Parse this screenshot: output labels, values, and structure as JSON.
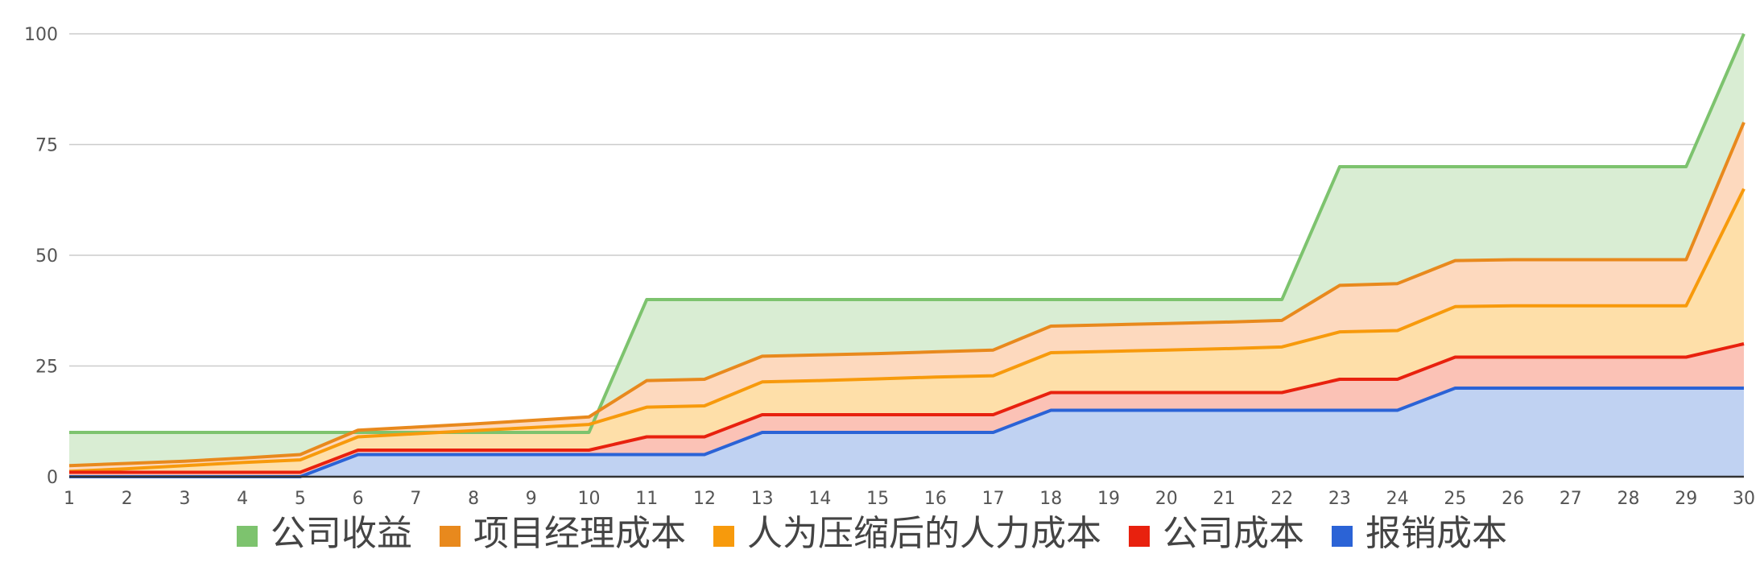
{
  "chart_data": {
    "type": "area",
    "stacked": false,
    "x": [
      1,
      2,
      3,
      4,
      5,
      6,
      7,
      8,
      9,
      10,
      11,
      12,
      13,
      14,
      15,
      16,
      17,
      18,
      19,
      20,
      21,
      22,
      23,
      24,
      25,
      26,
      27,
      28,
      29,
      30
    ],
    "ylim": [
      0,
      100
    ],
    "y_ticks": [
      0,
      25,
      50,
      75,
      100
    ],
    "grid": true,
    "legend_position": "bottom",
    "series": [
      {
        "name": "公司收益",
        "color": "#7dc36e",
        "fill": "#d9edd3",
        "values": [
          10,
          10,
          10,
          10,
          10,
          10,
          10,
          10,
          10,
          10,
          40,
          40,
          40,
          40,
          40,
          40,
          40,
          40,
          40,
          40,
          40,
          40,
          70,
          70,
          70,
          70,
          70,
          70,
          70,
          100
        ]
      },
      {
        "name": "项目经理成本",
        "color": "#e8891d",
        "fill": "#fdd9be",
        "values": [
          2.5,
          3,
          3.5,
          4.2,
          5,
          10.5,
          11.2,
          11.9,
          12.7,
          13.5,
          21.7,
          22,
          27.2,
          27.5,
          27.8,
          28.2,
          28.6,
          34,
          34.3,
          34.6,
          34.9,
          35.3,
          43.2,
          43.6,
          48.8,
          49,
          49,
          49,
          49,
          80
        ]
      },
      {
        "name": "人为压缩后的人力成本",
        "color": "#f79a0c",
        "fill": "#fedfa9",
        "values": [
          1.2,
          1.8,
          2.5,
          3.2,
          3.8,
          9,
          9.7,
          10.4,
          11.1,
          11.8,
          15.7,
          16,
          21.4,
          21.7,
          22.1,
          22.5,
          22.8,
          28,
          28.3,
          28.6,
          28.9,
          29.3,
          32.7,
          33,
          38.4,
          38.6,
          38.6,
          38.6,
          38.6,
          65
        ]
      },
      {
        "name": "公司成本",
        "color": "#e8210e",
        "fill": "#fbc2b6",
        "values": [
          1,
          1,
          1,
          1,
          1,
          6,
          6,
          6,
          6,
          6,
          9,
          9,
          14,
          14,
          14,
          14,
          14,
          19,
          19,
          19,
          19,
          19,
          22,
          22,
          27,
          27,
          27,
          27,
          27,
          30
        ]
      },
      {
        "name": "报销成本",
        "color": "#2b63d6",
        "fill": "#c0d2f2",
        "values": [
          0,
          0,
          0,
          0,
          0,
          5,
          5,
          5,
          5,
          5,
          5,
          5,
          10,
          10,
          10,
          10,
          10,
          15,
          15,
          15,
          15,
          15,
          15,
          15,
          20,
          20,
          20,
          20,
          20,
          20
        ]
      }
    ]
  }
}
